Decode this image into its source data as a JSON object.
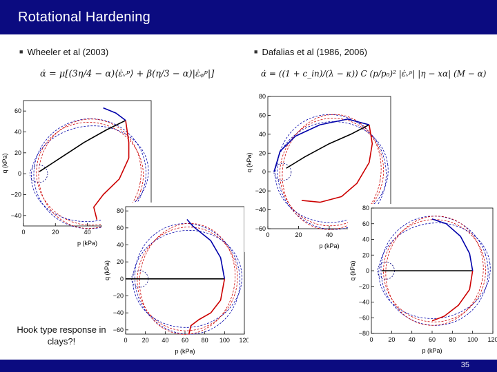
{
  "slide": {
    "title": "Rotational Hardening",
    "page_number": "35",
    "note": "Hook type response in clays?!"
  },
  "left_column": {
    "heading": "Wheeler et al (2003)",
    "equation": "α̇ = μ[(3η/4 − α)⟨ε̇ᵥᵖ⟩ + β(η/3 − α)|ε̇ᵩᵖ|]"
  },
  "right_column": {
    "heading": "Dafalias et al (1986, 2006)",
    "equation": "α̇ = ((1 + c_in)/(λ − κ)) C (p/p₀)² |ε̇ᵥᵖ| |η − xα| (M − α)"
  },
  "chart_data": [
    {
      "type": "line",
      "id": "wheeler-small",
      "xlabel": "p (kPa)",
      "ylabel": "q (kPa)",
      "xlim": [
        0,
        80
      ],
      "ylim": [
        -50,
        70
      ],
      "xticks": [
        0,
        20,
        40,
        60
      ],
      "yticks": [
        -40,
        -20,
        0,
        20,
        40,
        60
      ],
      "series": [
        {
          "color": "#000000",
          "style": "solid",
          "points": [
            [
              10,
              2
            ],
            [
              14,
              6
            ],
            [
              18,
              10
            ],
            [
              22,
              14
            ],
            [
              38,
              30
            ],
            [
              52,
              42
            ],
            [
              64,
              51
            ]
          ]
        },
        {
          "color": "#cc0000",
          "style": "solid",
          "points": [
            [
              64,
              51
            ],
            [
              66,
              30
            ],
            [
              66,
              15
            ],
            [
              60,
              -5
            ],
            [
              50,
              -20
            ],
            [
              44,
              -32
            ],
            [
              46,
              -44
            ]
          ]
        },
        {
          "color": "#0000aa",
          "style": "solid",
          "points": [
            [
              50,
              63
            ],
            [
              58,
              58
            ],
            [
              64,
              51
            ]
          ]
        }
      ]
    },
    {
      "type": "line",
      "id": "wheeler-large",
      "xlabel": "p (kPa)",
      "ylabel": "q (kPa)",
      "xlim": [
        0,
        120
      ],
      "ylim": [
        -65,
        85
      ],
      "xticks": [
        0,
        20,
        40,
        60,
        80,
        100,
        120
      ],
      "yticks": [
        -60,
        -40,
        -20,
        0,
        20,
        40,
        60,
        80
      ],
      "series": [
        {
          "color": "#000000",
          "style": "solid",
          "points": [
            [
              0,
              0
            ],
            [
              100,
              0
            ]
          ]
        },
        {
          "color": "#0000aa",
          "style": "solid",
          "points": [
            [
              62,
              70
            ],
            [
              68,
              62
            ],
            [
              86,
              45
            ],
            [
              96,
              25
            ],
            [
              100,
              0
            ]
          ]
        },
        {
          "color": "#cc0000",
          "style": "solid",
          "points": [
            [
              100,
              0
            ],
            [
              96,
              -25
            ],
            [
              86,
              -40
            ],
            [
              74,
              -48
            ],
            [
              66,
              -55
            ],
            [
              64,
              -65
            ]
          ]
        }
      ]
    },
    {
      "type": "line",
      "id": "dafalias-small",
      "xlabel": "p (kPa)",
      "ylabel": "q (kPa)",
      "xlim": [
        0,
        80
      ],
      "ylim": [
        -60,
        80
      ],
      "xticks": [
        0,
        20,
        40,
        60
      ],
      "yticks": [
        -60,
        -40,
        -20,
        0,
        20,
        40,
        60,
        80
      ],
      "series": [
        {
          "color": "#000000",
          "style": "solid",
          "points": [
            [
              12,
              4
            ],
            [
              18,
              10
            ],
            [
              24,
              16
            ],
            [
              40,
              30
            ],
            [
              54,
              40
            ],
            [
              66,
              50
            ]
          ]
        },
        {
          "color": "#cc0000",
          "style": "solid",
          "points": [
            [
              66,
              50
            ],
            [
              68,
              30
            ],
            [
              66,
              10
            ],
            [
              58,
              -12
            ],
            [
              48,
              -26
            ],
            [
              34,
              -32
            ],
            [
              22,
              -30
            ]
          ]
        },
        {
          "color": "#0000aa",
          "style": "solid",
          "points": [
            [
              4,
              0
            ],
            [
              8,
              22
            ],
            [
              18,
              38
            ],
            [
              34,
              50
            ],
            [
              52,
              56
            ],
            [
              66,
              50
            ]
          ]
        }
      ]
    },
    {
      "type": "line",
      "id": "dafalias-large",
      "xlabel": "p (kPa)",
      "ylabel": "q (kPa)",
      "xlim": [
        0,
        120
      ],
      "ylim": [
        -80,
        80
      ],
      "xticks": [
        0,
        20,
        40,
        60,
        80,
        100,
        120
      ],
      "yticks": [
        -80,
        -60,
        -40,
        -20,
        0,
        20,
        40,
        60,
        80
      ],
      "series": [
        {
          "color": "#000000",
          "style": "solid",
          "points": [
            [
              10,
              0
            ],
            [
              100,
              0
            ]
          ]
        },
        {
          "color": "#0000aa",
          "style": "solid",
          "points": [
            [
              60,
              66
            ],
            [
              74,
              60
            ],
            [
              88,
              44
            ],
            [
              97,
              22
            ],
            [
              100,
              0
            ]
          ]
        },
        {
          "color": "#cc0000",
          "style": "solid",
          "points": [
            [
              100,
              0
            ],
            [
              97,
              -24
            ],
            [
              86,
              -44
            ],
            [
              72,
              -58
            ],
            [
              60,
              -64
            ]
          ]
        }
      ]
    }
  ]
}
